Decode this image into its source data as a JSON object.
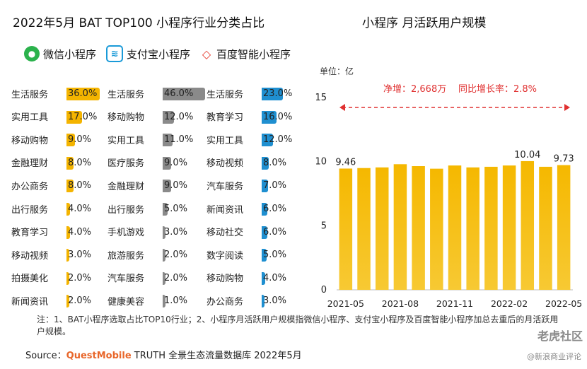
{
  "left_title": "2022年5月 BAT TOP100 小程序行业分类占比",
  "right_title": "小程序 月活跃用户规模",
  "legend": {
    "wechat": "微信小程序",
    "alipay": "支付宝小程序",
    "baidu": "百度智能小程序",
    "wechat_icon": "wechat-icon",
    "alipay_icon": "alipay-icon",
    "baidu_icon": "baidu-icon"
  },
  "colors": {
    "wechat": "#f4b400",
    "alipay": "#8a8a8a",
    "baidu": "#1f8fd0",
    "accent": "#e03131",
    "bar_line": "#f5b800"
  },
  "chart_data": [
    {
      "type": "bar",
      "title": "2022年5月 BAT TOP100 小程序行业分类占比",
      "panels": [
        {
          "name": "微信小程序",
          "categories": [
            "生活服务",
            "实用工具",
            "移动购物",
            "金融理财",
            "办公商务",
            "出行服务",
            "教育学习",
            "移动视频",
            "拍摄美化",
            "新闻资讯"
          ],
          "labels": [
            "36.0%",
            "17.0%",
            "9.0%",
            "8.0%",
            "8.0%",
            "4.0%",
            "4.0%",
            "3.0%",
            "2.0%",
            "2.0%"
          ],
          "values": [
            36.0,
            17.0,
            9.0,
            8.0,
            8.0,
            4.0,
            4.0,
            3.0,
            2.0,
            2.0
          ]
        },
        {
          "name": "支付宝小程序",
          "categories": [
            "生活服务",
            "移动购物",
            "实用工具",
            "医疗服务",
            "金融理财",
            "出行服务",
            "手机游戏",
            "旅游服务",
            "汽车服务",
            "健康美容"
          ],
          "labels": [
            "46.0%",
            "12.0%",
            "11.0%",
            "9.0%",
            "9.0%",
            "5.0%",
            "3.0%",
            "2.0%",
            "2.0%",
            "1.0%"
          ],
          "values": [
            46.0,
            12.0,
            11.0,
            9.0,
            9.0,
            5.0,
            3.0,
            2.0,
            2.0,
            1.0
          ]
        },
        {
          "name": "百度智能小程序",
          "categories": [
            "生活服务",
            "教育学习",
            "实用工具",
            "移动视频",
            "汽车服务",
            "新闻资讯",
            "移动社交",
            "数字阅读",
            "移动购物",
            "办公商务"
          ],
          "labels": [
            "23.0%",
            "16.0%",
            "12.0%",
            "8.0%",
            "7.0%",
            "6.0%",
            "6.0%",
            "5.0%",
            "4.0%",
            "3.0%"
          ],
          "values": [
            23.0,
            16.0,
            12.0,
            8.0,
            7.0,
            6.0,
            6.0,
            5.0,
            4.0,
            3.0
          ]
        }
      ]
    },
    {
      "type": "bar",
      "title": "小程序 月活跃用户规模",
      "unit": "单位：亿",
      "x": [
        "2021-05",
        "2021-06",
        "2021-07",
        "2021-08",
        "2021-09",
        "2021-10",
        "2021-11",
        "2021-12",
        "2022-01",
        "2022-02",
        "2022-03",
        "2022-04",
        "2022-05"
      ],
      "x_tick_labels": [
        "2021-05",
        "2021-08",
        "2021-11",
        "2022-02",
        "2022-05"
      ],
      "values": [
        9.46,
        9.5,
        9.55,
        9.8,
        9.65,
        9.45,
        9.7,
        9.55,
        9.6,
        9.7,
        10.04,
        9.6,
        9.73
      ],
      "data_labels": {
        "0": "9.46",
        "10": "10.04",
        "12": "9.73"
      },
      "yticks": [
        "0",
        "5",
        "10",
        "15"
      ],
      "ylim": [
        0,
        15
      ],
      "annotation": {
        "net": "净增：2,668万",
        "yoy": "同比增长率：2.8%"
      }
    }
  ],
  "note": "注：1、BAT小程序选取占比TOP10行业；2、小程序月活跃用户规模指微信小程序、支付宝小程序及百度智能小程序加总去重后的月活跃用户规模。",
  "source": {
    "prefix": "Source：",
    "brand": "QuestMobile",
    "rest": " TRUTH 全景生态流量数据库 2022年5月"
  },
  "watermark": {
    "line1": "老虎社区",
    "line2": "@新浪商业评论"
  }
}
